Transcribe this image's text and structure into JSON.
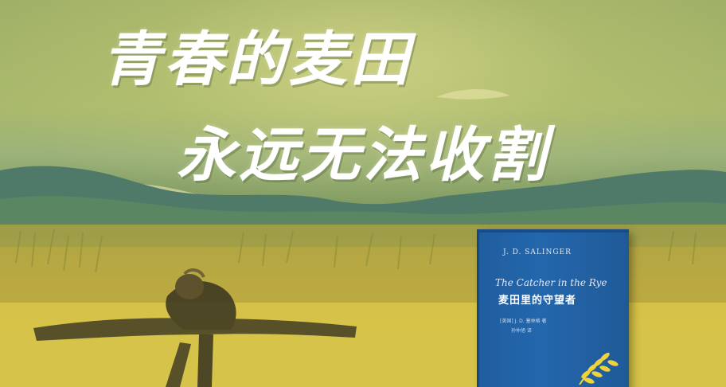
{
  "headline": {
    "line1": "青春的麦田",
    "line2": "永远无法收割"
  },
  "book": {
    "author": "J. D. SALINGER",
    "title_en": "The Catcher in the Rye",
    "title_cn": "麦田里的守望者",
    "author_credit": "[美国] J. D. 塞林格 著",
    "translator_credit": "孙仲旭 译"
  },
  "colors": {
    "text": "#ffffff",
    "field": "#d6c44a",
    "mountain": "#4f7a6a",
    "book_blue": "#2467ad",
    "wheat_gold": "#f0d23a"
  },
  "icons": [
    "scarecrow-figure",
    "wheat-icon",
    "mountain-silhouette",
    "cloud-swirl"
  ]
}
